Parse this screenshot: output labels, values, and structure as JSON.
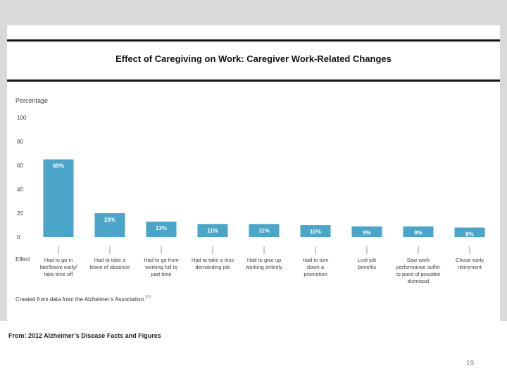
{
  "title": "Effect of Caregiving on Work: Caregiver Work-Related Changes",
  "source": "From: 2012 Alzheimer’s Disease Facts and Figures",
  "slide_number": "19",
  "credit": "Created from data from the Alzheimer’s Association.",
  "credit_superscript": "2??",
  "colors": {
    "bar": "#4ba5c9",
    "panel": "#ffffff",
    "frame": "#d9d9d9"
  },
  "chart_data": {
    "type": "bar",
    "ylabel": "Percentage",
    "xlabel": "Effect",
    "ylim": [
      0,
      100
    ],
    "yticks": [
      0,
      20,
      40,
      60,
      80,
      100
    ],
    "categories": [
      [
        "Had to go in",
        "late/leave early/",
        "take time off"
      ],
      [
        "Had to take a",
        "leave of absence"
      ],
      [
        "Had to go from",
        "working full to",
        "part time"
      ],
      [
        "Had to take a less",
        "demanding job"
      ],
      [
        "Had to give up",
        "working entirely"
      ],
      [
        "Had to turn",
        "down a",
        "promotion"
      ],
      [
        "Lost job",
        "benefits"
      ],
      [
        "Saw work",
        "performance suffer",
        "to point of possible",
        "dismissal"
      ],
      [
        "Chose early",
        "retirement"
      ]
    ],
    "values": [
      65,
      20,
      13,
      11,
      11,
      10,
      9,
      9,
      8
    ],
    "data_labels": [
      "65%",
      "20%",
      "13%",
      "11%",
      "11%",
      "10%",
      "9%",
      "9%",
      "8%"
    ],
    "grid": false,
    "legend": "none"
  }
}
